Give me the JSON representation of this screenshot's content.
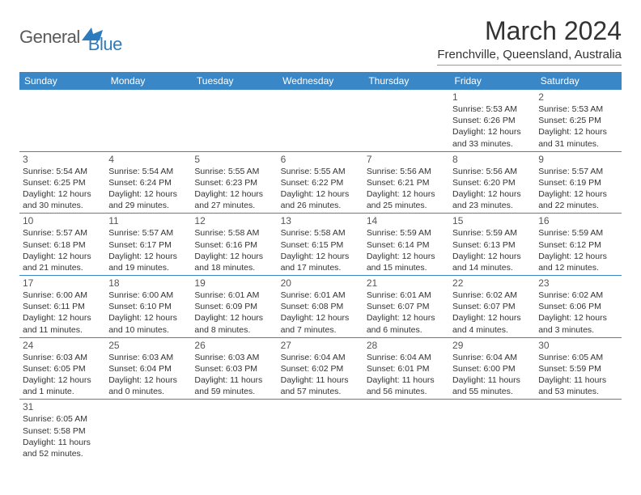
{
  "logo": {
    "general": "General",
    "blue": "Blue"
  },
  "title": "March 2024",
  "location": "Frenchville, Queensland, Australia",
  "weekdays": [
    "Sunday",
    "Monday",
    "Tuesday",
    "Wednesday",
    "Thursday",
    "Friday",
    "Saturday"
  ],
  "colors": {
    "header_bg": "#3a87c7",
    "header_text": "#ffffff",
    "logo_general": "#5a5a5a",
    "logo_blue": "#2c7bbf",
    "border": "#3a87c7",
    "text": "#333333"
  },
  "weeks": [
    [
      null,
      null,
      null,
      null,
      null,
      {
        "day": "1",
        "sunrise": "Sunrise: 5:53 AM",
        "sunset": "Sunset: 6:26 PM",
        "daylight": "Daylight: 12 hours and 33 minutes."
      },
      {
        "day": "2",
        "sunrise": "Sunrise: 5:53 AM",
        "sunset": "Sunset: 6:25 PM",
        "daylight": "Daylight: 12 hours and 31 minutes."
      }
    ],
    [
      {
        "day": "3",
        "sunrise": "Sunrise: 5:54 AM",
        "sunset": "Sunset: 6:25 PM",
        "daylight": "Daylight: 12 hours and 30 minutes."
      },
      {
        "day": "4",
        "sunrise": "Sunrise: 5:54 AM",
        "sunset": "Sunset: 6:24 PM",
        "daylight": "Daylight: 12 hours and 29 minutes."
      },
      {
        "day": "5",
        "sunrise": "Sunrise: 5:55 AM",
        "sunset": "Sunset: 6:23 PM",
        "daylight": "Daylight: 12 hours and 27 minutes."
      },
      {
        "day": "6",
        "sunrise": "Sunrise: 5:55 AM",
        "sunset": "Sunset: 6:22 PM",
        "daylight": "Daylight: 12 hours and 26 minutes."
      },
      {
        "day": "7",
        "sunrise": "Sunrise: 5:56 AM",
        "sunset": "Sunset: 6:21 PM",
        "daylight": "Daylight: 12 hours and 25 minutes."
      },
      {
        "day": "8",
        "sunrise": "Sunrise: 5:56 AM",
        "sunset": "Sunset: 6:20 PM",
        "daylight": "Daylight: 12 hours and 23 minutes."
      },
      {
        "day": "9",
        "sunrise": "Sunrise: 5:57 AM",
        "sunset": "Sunset: 6:19 PM",
        "daylight": "Daylight: 12 hours and 22 minutes."
      }
    ],
    [
      {
        "day": "10",
        "sunrise": "Sunrise: 5:57 AM",
        "sunset": "Sunset: 6:18 PM",
        "daylight": "Daylight: 12 hours and 21 minutes."
      },
      {
        "day": "11",
        "sunrise": "Sunrise: 5:57 AM",
        "sunset": "Sunset: 6:17 PM",
        "daylight": "Daylight: 12 hours and 19 minutes."
      },
      {
        "day": "12",
        "sunrise": "Sunrise: 5:58 AM",
        "sunset": "Sunset: 6:16 PM",
        "daylight": "Daylight: 12 hours and 18 minutes."
      },
      {
        "day": "13",
        "sunrise": "Sunrise: 5:58 AM",
        "sunset": "Sunset: 6:15 PM",
        "daylight": "Daylight: 12 hours and 17 minutes."
      },
      {
        "day": "14",
        "sunrise": "Sunrise: 5:59 AM",
        "sunset": "Sunset: 6:14 PM",
        "daylight": "Daylight: 12 hours and 15 minutes."
      },
      {
        "day": "15",
        "sunrise": "Sunrise: 5:59 AM",
        "sunset": "Sunset: 6:13 PM",
        "daylight": "Daylight: 12 hours and 14 minutes."
      },
      {
        "day": "16",
        "sunrise": "Sunrise: 5:59 AM",
        "sunset": "Sunset: 6:12 PM",
        "daylight": "Daylight: 12 hours and 12 minutes."
      }
    ],
    [
      {
        "day": "17",
        "sunrise": "Sunrise: 6:00 AM",
        "sunset": "Sunset: 6:11 PM",
        "daylight": "Daylight: 12 hours and 11 minutes."
      },
      {
        "day": "18",
        "sunrise": "Sunrise: 6:00 AM",
        "sunset": "Sunset: 6:10 PM",
        "daylight": "Daylight: 12 hours and 10 minutes."
      },
      {
        "day": "19",
        "sunrise": "Sunrise: 6:01 AM",
        "sunset": "Sunset: 6:09 PM",
        "daylight": "Daylight: 12 hours and 8 minutes."
      },
      {
        "day": "20",
        "sunrise": "Sunrise: 6:01 AM",
        "sunset": "Sunset: 6:08 PM",
        "daylight": "Daylight: 12 hours and 7 minutes."
      },
      {
        "day": "21",
        "sunrise": "Sunrise: 6:01 AM",
        "sunset": "Sunset: 6:07 PM",
        "daylight": "Daylight: 12 hours and 6 minutes."
      },
      {
        "day": "22",
        "sunrise": "Sunrise: 6:02 AM",
        "sunset": "Sunset: 6:07 PM",
        "daylight": "Daylight: 12 hours and 4 minutes."
      },
      {
        "day": "23",
        "sunrise": "Sunrise: 6:02 AM",
        "sunset": "Sunset: 6:06 PM",
        "daylight": "Daylight: 12 hours and 3 minutes."
      }
    ],
    [
      {
        "day": "24",
        "sunrise": "Sunrise: 6:03 AM",
        "sunset": "Sunset: 6:05 PM",
        "daylight": "Daylight: 12 hours and 1 minute."
      },
      {
        "day": "25",
        "sunrise": "Sunrise: 6:03 AM",
        "sunset": "Sunset: 6:04 PM",
        "daylight": "Daylight: 12 hours and 0 minutes."
      },
      {
        "day": "26",
        "sunrise": "Sunrise: 6:03 AM",
        "sunset": "Sunset: 6:03 PM",
        "daylight": "Daylight: 11 hours and 59 minutes."
      },
      {
        "day": "27",
        "sunrise": "Sunrise: 6:04 AM",
        "sunset": "Sunset: 6:02 PM",
        "daylight": "Daylight: 11 hours and 57 minutes."
      },
      {
        "day": "28",
        "sunrise": "Sunrise: 6:04 AM",
        "sunset": "Sunset: 6:01 PM",
        "daylight": "Daylight: 11 hours and 56 minutes."
      },
      {
        "day": "29",
        "sunrise": "Sunrise: 6:04 AM",
        "sunset": "Sunset: 6:00 PM",
        "daylight": "Daylight: 11 hours and 55 minutes."
      },
      {
        "day": "30",
        "sunrise": "Sunrise: 6:05 AM",
        "sunset": "Sunset: 5:59 PM",
        "daylight": "Daylight: 11 hours and 53 minutes."
      }
    ],
    [
      {
        "day": "31",
        "sunrise": "Sunrise: 6:05 AM",
        "sunset": "Sunset: 5:58 PM",
        "daylight": "Daylight: 11 hours and 52 minutes."
      },
      null,
      null,
      null,
      null,
      null,
      null
    ]
  ]
}
